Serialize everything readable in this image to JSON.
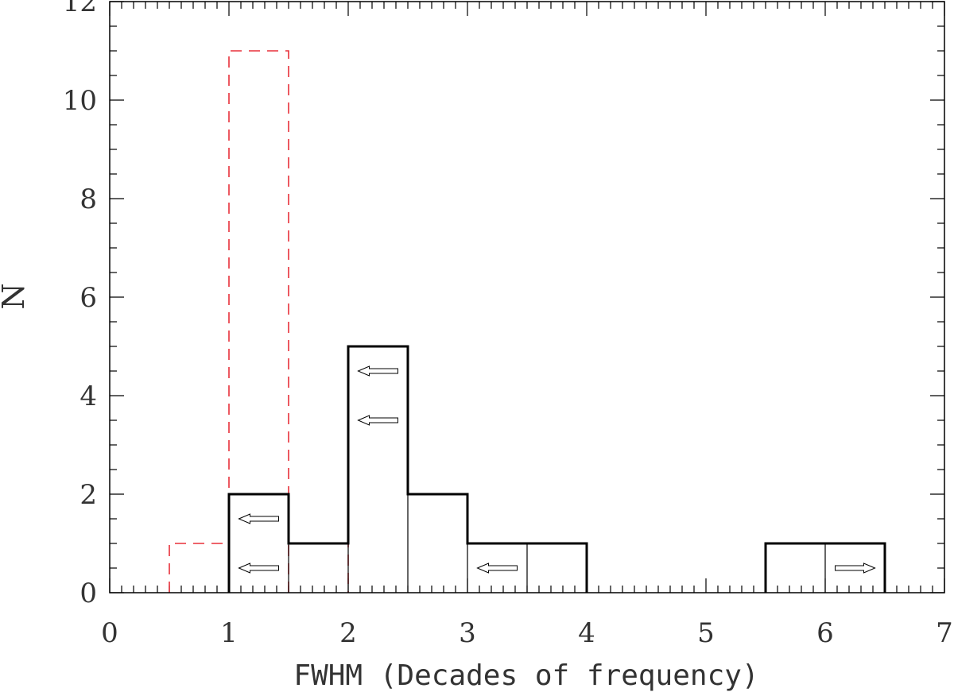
{
  "chart_data": {
    "type": "bar",
    "xlabel": "FWHM (Decades of frequency)",
    "ylabel": "N",
    "xlim": [
      0,
      7
    ],
    "ylim": [
      0,
      12
    ],
    "x_ticks": [
      "0",
      "1",
      "2",
      "3",
      "4",
      "5",
      "6",
      "7"
    ],
    "y_ticks": [
      "0",
      "2",
      "4",
      "6",
      "8",
      "10",
      "12"
    ],
    "grid": false,
    "series": [
      {
        "style": "solid",
        "color": "#000000",
        "bins": [
          {
            "x0": 1.0,
            "x1": 1.5,
            "count": 2
          },
          {
            "x0": 1.5,
            "x1": 2.0,
            "count": 1
          },
          {
            "x0": 2.0,
            "x1": 2.5,
            "count": 5
          },
          {
            "x0": 2.5,
            "x1": 3.0,
            "count": 2
          },
          {
            "x0": 3.0,
            "x1": 3.5,
            "count": 1
          },
          {
            "x0": 3.5,
            "x1": 4.0,
            "count": 1
          },
          {
            "x0": 5.5,
            "x1": 6.0,
            "count": 1
          },
          {
            "x0": 6.0,
            "x1": 6.5,
            "count": 1
          }
        ]
      },
      {
        "style": "dashed",
        "color": "#e8303a",
        "bins": [
          {
            "x0": 0.5,
            "x1": 1.0,
            "count": 1
          },
          {
            "x0": 1.0,
            "x1": 1.5,
            "count": 11
          },
          {
            "x0": 1.5,
            "x1": 2.0,
            "count": 1
          }
        ]
      }
    ],
    "limit_arrows": [
      {
        "x": 1.25,
        "y": 0.5,
        "direction": "left"
      },
      {
        "x": 1.25,
        "y": 1.5,
        "direction": "left"
      },
      {
        "x": 2.25,
        "y": 3.5,
        "direction": "left"
      },
      {
        "x": 2.25,
        "y": 4.5,
        "direction": "left"
      },
      {
        "x": 3.25,
        "y": 0.5,
        "direction": "left"
      },
      {
        "x": 6.25,
        "y": 0.5,
        "direction": "right"
      }
    ]
  }
}
